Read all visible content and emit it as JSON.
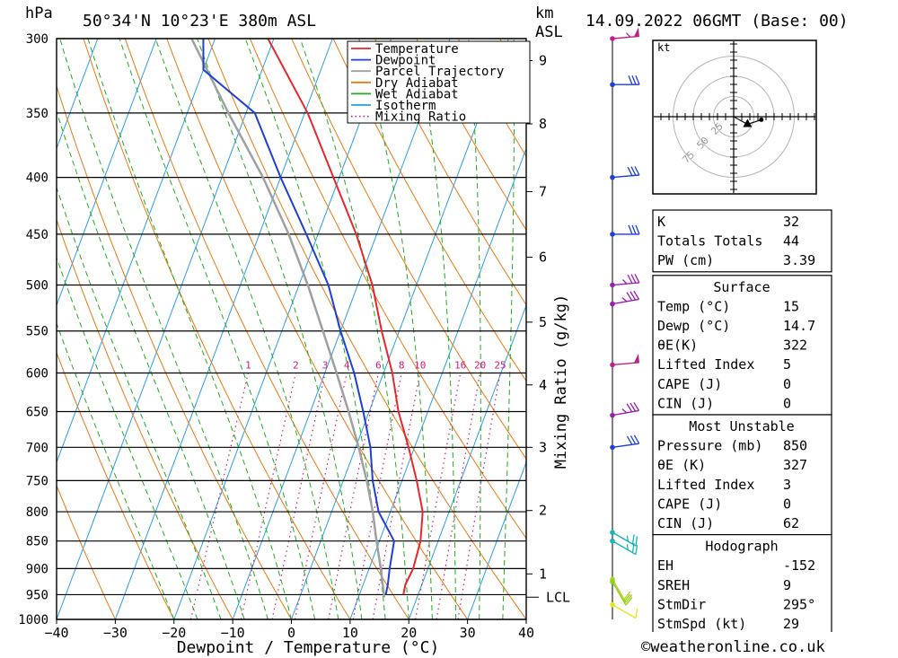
{
  "header": {
    "p_unit": "hPa",
    "location": "50°34'N 10°23'E 380m ASL",
    "km_unit": "km",
    "km_asl": "ASL",
    "datetime": "14.09.2022 06GMT (Base: 00)"
  },
  "credit": "©weatheronline.co.uk",
  "chart_data": {
    "type": "skew-t log-p sounding",
    "xlabel": "Dewpoint / Temperature (°C)",
    "ylabel_right": "Mixing Ratio (g/kg)",
    "x_ticks": [
      -40,
      -30,
      -20,
      -10,
      0,
      10,
      20,
      30,
      40
    ],
    "pressure_levels": [
      300,
      350,
      400,
      450,
      500,
      550,
      600,
      650,
      700,
      750,
      800,
      850,
      900,
      950,
      1000
    ],
    "height_km_ticks": [
      {
        "label": "1",
        "p": 910
      },
      {
        "label": "2",
        "p": 798
      },
      {
        "label": "3",
        "p": 700
      },
      {
        "label": "4",
        "p": 615
      },
      {
        "label": "5",
        "p": 540
      },
      {
        "label": "6",
        "p": 472
      },
      {
        "label": "7",
        "p": 412
      },
      {
        "label": "8",
        "p": 358
      },
      {
        "label": "9",
        "p": 314
      }
    ],
    "lcl_label": "LCL",
    "lcl_p": 955,
    "mixing_ratio_labels": [
      "1",
      "2",
      "3",
      "4",
      "6",
      "8",
      "10",
      "16",
      "20",
      "25"
    ],
    "legend": [
      {
        "name": "Temperature",
        "color": "#e8262b",
        "dotted": false
      },
      {
        "name": "Dewpoint",
        "color": "#1f3fd6",
        "dotted": false
      },
      {
        "name": "Parcel Trajectory",
        "color": "#a0a0a0",
        "dotted": false
      },
      {
        "name": "Dry Adiabat",
        "color": "#e87a14",
        "dotted": false
      },
      {
        "name": "Wet Adiabat",
        "color": "#1fae1f",
        "dotted": false
      },
      {
        "name": "Isotherm",
        "color": "#2a9ee8",
        "dotted": false
      },
      {
        "name": "Mixing Ratio",
        "color": "#d0187a",
        "dotted": true
      }
    ],
    "temperature": [
      {
        "p": 950,
        "t": 17.5
      },
      {
        "p": 930,
        "t": 17.2
      },
      {
        "p": 900,
        "t": 17.5
      },
      {
        "p": 850,
        "t": 17.0
      },
      {
        "p": 800,
        "t": 15.5
      },
      {
        "p": 750,
        "t": 12.5
      },
      {
        "p": 700,
        "t": 9.0
      },
      {
        "p": 650,
        "t": 5.0
      },
      {
        "p": 600,
        "t": 1.5
      },
      {
        "p": 550,
        "t": -3.0
      },
      {
        "p": 500,
        "t": -7.5
      },
      {
        "p": 450,
        "t": -13.5
      },
      {
        "p": 400,
        "t": -21.0
      },
      {
        "p": 350,
        "t": -29.5
      },
      {
        "p": 300,
        "t": -41.0
      }
    ],
    "dewpoint": [
      {
        "p": 950,
        "t": 14.5
      },
      {
        "p": 930,
        "t": 14.2
      },
      {
        "p": 900,
        "t": 13.5
      },
      {
        "p": 850,
        "t": 12.5
      },
      {
        "p": 800,
        "t": 8.0
      },
      {
        "p": 750,
        "t": 5.0
      },
      {
        "p": 700,
        "t": 2.5
      },
      {
        "p": 650,
        "t": -1.0
      },
      {
        "p": 600,
        "t": -5.0
      },
      {
        "p": 550,
        "t": -10.0
      },
      {
        "p": 500,
        "t": -15.0
      },
      {
        "p": 450,
        "t": -22.0
      },
      {
        "p": 400,
        "t": -30.0
      },
      {
        "p": 350,
        "t": -38.5
      },
      {
        "p": 320,
        "t": -50.0
      },
      {
        "p": 300,
        "t": -52.0
      }
    ],
    "parcel": [
      {
        "p": 955,
        "t": 14.4
      },
      {
        "p": 900,
        "t": 12.0
      },
      {
        "p": 850,
        "t": 9.5
      },
      {
        "p": 800,
        "t": 7.0
      },
      {
        "p": 750,
        "t": 4.0
      },
      {
        "p": 700,
        "t": 0.5
      },
      {
        "p": 650,
        "t": -3.5
      },
      {
        "p": 600,
        "t": -8.0
      },
      {
        "p": 550,
        "t": -13.0
      },
      {
        "p": 500,
        "t": -18.5
      },
      {
        "p": 450,
        "t": -25.0
      },
      {
        "p": 400,
        "t": -33.0
      },
      {
        "p": 350,
        "t": -43.0
      },
      {
        "p": 300,
        "t": -54.0
      }
    ],
    "wind_barbs": [
      {
        "p": 300,
        "dir": 265,
        "speed_kt": 55,
        "color": "#c0208a"
      },
      {
        "p": 330,
        "dir": 270,
        "speed_kt": 30,
        "color": "#1f3fd6"
      },
      {
        "p": 400,
        "dir": 265,
        "speed_kt": 30,
        "color": "#1f3fd6"
      },
      {
        "p": 450,
        "dir": 270,
        "speed_kt": 30,
        "color": "#1f3fd6"
      },
      {
        "p": 500,
        "dir": 265,
        "speed_kt": 35,
        "color": "#9a1eb4"
      },
      {
        "p": 520,
        "dir": 260,
        "speed_kt": 35,
        "color": "#9a1eb4"
      },
      {
        "p": 590,
        "dir": 265,
        "speed_kt": 50,
        "color": "#c0208a"
      },
      {
        "p": 655,
        "dir": 260,
        "speed_kt": 35,
        "color": "#9a1eb4"
      },
      {
        "p": 700,
        "dir": 262,
        "speed_kt": 30,
        "color": "#1f3fd6"
      },
      {
        "p": 835,
        "dir": 300,
        "speed_kt": 25,
        "color": "#19b4b4"
      },
      {
        "p": 850,
        "dir": 300,
        "speed_kt": 25,
        "color": "#19b4b4"
      },
      {
        "p": 920,
        "dir": 330,
        "speed_kt": 20,
        "color": "#b4d21e"
      },
      {
        "p": 925,
        "dir": 330,
        "speed_kt": 20,
        "color": "#8cd21e"
      },
      {
        "p": 970,
        "dir": 300,
        "speed_kt": 10,
        "color": "#e6e61e"
      }
    ],
    "hodograph": {
      "unit": "kt",
      "ring_labels": [
        "25",
        "50",
        "75"
      ],
      "points": [
        {
          "u": 0,
          "v": 0
        },
        {
          "u": 9,
          "v": -5
        },
        {
          "u": 18,
          "v": -2
        }
      ]
    }
  },
  "indices": {
    "general": [
      {
        "label": "K",
        "value": "32"
      },
      {
        "label": "Totals Totals",
        "value": "44"
      },
      {
        "label": "PW (cm)",
        "value": "3.39"
      }
    ],
    "surface": {
      "title": "Surface",
      "rows": [
        {
          "label": "Temp (°C)",
          "value": "15"
        },
        {
          "label": "Dewp (°C)",
          "value": "14.7"
        },
        {
          "label": "θE(K)",
          "value": "322"
        },
        {
          "label": "Lifted Index",
          "value": "5"
        },
        {
          "label": "CAPE (J)",
          "value": "0"
        },
        {
          "label": "CIN (J)",
          "value": "0"
        }
      ]
    },
    "most_unstable": {
      "title": "Most Unstable",
      "rows": [
        {
          "label": "Pressure (mb)",
          "value": "850"
        },
        {
          "label": "θE (K)",
          "value": "327"
        },
        {
          "label": "Lifted Index",
          "value": "3"
        },
        {
          "label": "CAPE (J)",
          "value": "0"
        },
        {
          "label": "CIN (J)",
          "value": "62"
        }
      ]
    },
    "hodograph": {
      "title": "Hodograph",
      "rows": [
        {
          "label": "EH",
          "value": "-152"
        },
        {
          "label": "SREH",
          "value": "9"
        },
        {
          "label": "StmDir",
          "value": "295°"
        },
        {
          "label": "StmSpd (kt)",
          "value": "29"
        }
      ]
    }
  }
}
